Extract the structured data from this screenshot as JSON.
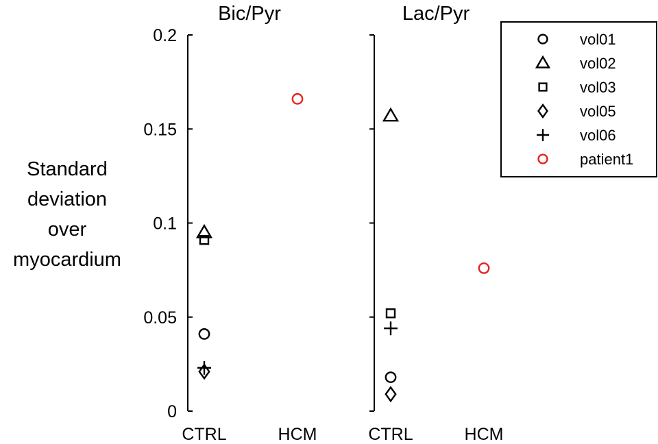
{
  "y_axis": {
    "label_lines": [
      "Standard",
      "deviation",
      "over",
      "myocardium"
    ],
    "ticks": [
      0,
      0.05,
      0.1,
      0.15,
      0.2
    ],
    "tick_labels": [
      "0",
      "0.05",
      "0.1",
      "0.15",
      "0.2"
    ],
    "ylim": [
      0,
      0.2
    ]
  },
  "chart_data": [
    {
      "type": "scatter",
      "title": "Bic/Pyr",
      "categories": [
        "CTRL",
        "HCM"
      ],
      "ylim": [
        0,
        0.2
      ],
      "ylabel": "Standard deviation over myocardium",
      "series": [
        {
          "name": "vol01",
          "marker": "circle",
          "color": "#000000",
          "points": [
            {
              "x": "CTRL",
              "y": 0.041
            }
          ]
        },
        {
          "name": "vol02",
          "marker": "triangle",
          "color": "#000000",
          "points": [
            {
              "x": "CTRL",
              "y": 0.095
            }
          ]
        },
        {
          "name": "vol03",
          "marker": "square",
          "color": "#000000",
          "points": [
            {
              "x": "CTRL",
              "y": 0.091
            }
          ]
        },
        {
          "name": "vol05",
          "marker": "diamond",
          "color": "#000000",
          "points": [
            {
              "x": "CTRL",
              "y": 0.021
            }
          ]
        },
        {
          "name": "vol06",
          "marker": "plus",
          "color": "#000000",
          "points": [
            {
              "x": "CTRL",
              "y": 0.023
            }
          ]
        },
        {
          "name": "patient1",
          "marker": "circle",
          "color": "#e8211f",
          "points": [
            {
              "x": "HCM",
              "y": 0.166
            }
          ]
        }
      ]
    },
    {
      "type": "scatter",
      "title": "Lac/Pyr",
      "categories": [
        "CTRL",
        "HCM"
      ],
      "ylim": [
        0,
        0.2
      ],
      "series": [
        {
          "name": "vol01",
          "marker": "circle",
          "color": "#000000",
          "points": [
            {
              "x": "CTRL",
              "y": 0.018
            }
          ]
        },
        {
          "name": "vol02",
          "marker": "triangle",
          "color": "#000000",
          "points": [
            {
              "x": "CTRL",
              "y": 0.157
            }
          ]
        },
        {
          "name": "vol03",
          "marker": "square",
          "color": "#000000",
          "points": [
            {
              "x": "CTRL",
              "y": 0.052
            }
          ]
        },
        {
          "name": "vol05",
          "marker": "diamond",
          "color": "#000000",
          "points": [
            {
              "x": "CTRL",
              "y": 0.009
            }
          ]
        },
        {
          "name": "vol06",
          "marker": "plus",
          "color": "#000000",
          "points": [
            {
              "x": "CTRL",
              "y": 0.044
            }
          ]
        },
        {
          "name": "patient1",
          "marker": "circle",
          "color": "#e8211f",
          "points": [
            {
              "x": "HCM",
              "y": 0.076
            }
          ]
        }
      ]
    }
  ],
  "legend": {
    "placement": "top-right",
    "items": [
      {
        "name": "vol01",
        "marker": "circle",
        "color": "#000000"
      },
      {
        "name": "vol02",
        "marker": "triangle",
        "color": "#000000"
      },
      {
        "name": "vol03",
        "marker": "square",
        "color": "#000000"
      },
      {
        "name": "vol05",
        "marker": "diamond",
        "color": "#000000"
      },
      {
        "name": "vol06",
        "marker": "plus",
        "color": "#000000"
      },
      {
        "name": "patient1",
        "marker": "circle",
        "color": "#e8211f"
      }
    ]
  }
}
